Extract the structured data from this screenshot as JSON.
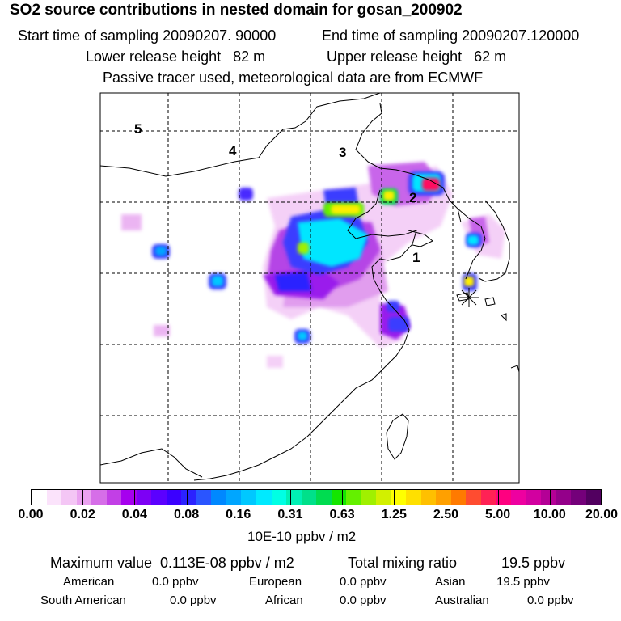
{
  "header": {
    "title": "SO2 source contributions in nested domain for gosan_200902",
    "start_time": "Start time of sampling 20090207. 90000",
    "end_time": "End time of sampling 20090207.120000",
    "lower_height": "Lower release height   82 m",
    "upper_height": "Upper release height   62 m",
    "tracer_note": "Passive tracer used, meteorological data are from ECMWF"
  },
  "map": {
    "region_labels": [
      "1",
      "2",
      "3",
      "4",
      "5"
    ],
    "receptor_marker": "gosan-station-marker"
  },
  "colorbar": {
    "tick_labels": [
      "0.00",
      "0.02",
      "0.04",
      "0.08",
      "0.16",
      "0.31",
      "0.63",
      "1.25",
      "2.50",
      "5.00",
      "10.00",
      "20.00"
    ],
    "colors": [
      "#ffffff",
      "#fbe3fb",
      "#f4c6f5",
      "#eaa1f0",
      "#d66ee8",
      "#c23fe6",
      "#a600ee",
      "#7d00f5",
      "#5b00ff",
      "#3b00ff",
      "#2b22ff",
      "#2a55ff",
      "#0088ff",
      "#00a6ff",
      "#00c8ff",
      "#00eaff",
      "#00ffe4",
      "#00f0b4",
      "#00e08a",
      "#00dc50",
      "#14e600",
      "#64f000",
      "#a0f000",
      "#d2f000",
      "#ffff00",
      "#ffe000",
      "#ffc000",
      "#ffa000",
      "#ff7a00",
      "#ff4c30",
      "#ff2255",
      "#ff0080",
      "#ee00a0",
      "#d200a0",
      "#b40096",
      "#94008a",
      "#74007a",
      "#520060"
    ],
    "unit": "10E-10 ppbv / m2"
  },
  "summary": {
    "max_value": "Maximum value  0.113E-08 ppbv / m2",
    "total_mixing": "Total mixing ratio",
    "total_value": "19.5 ppbv",
    "sources": [
      {
        "name": "American",
        "value": "0.0 ppbv"
      },
      {
        "name": "European",
        "value": "0.0 ppbv"
      },
      {
        "name": "Asian",
        "value": "19.5 ppbv"
      },
      {
        "name": "South American",
        "value": "0.0 ppbv"
      },
      {
        "name": "African",
        "value": "0.0 ppbv"
      },
      {
        "name": "Australian",
        "value": "0.0 ppbv"
      }
    ]
  }
}
